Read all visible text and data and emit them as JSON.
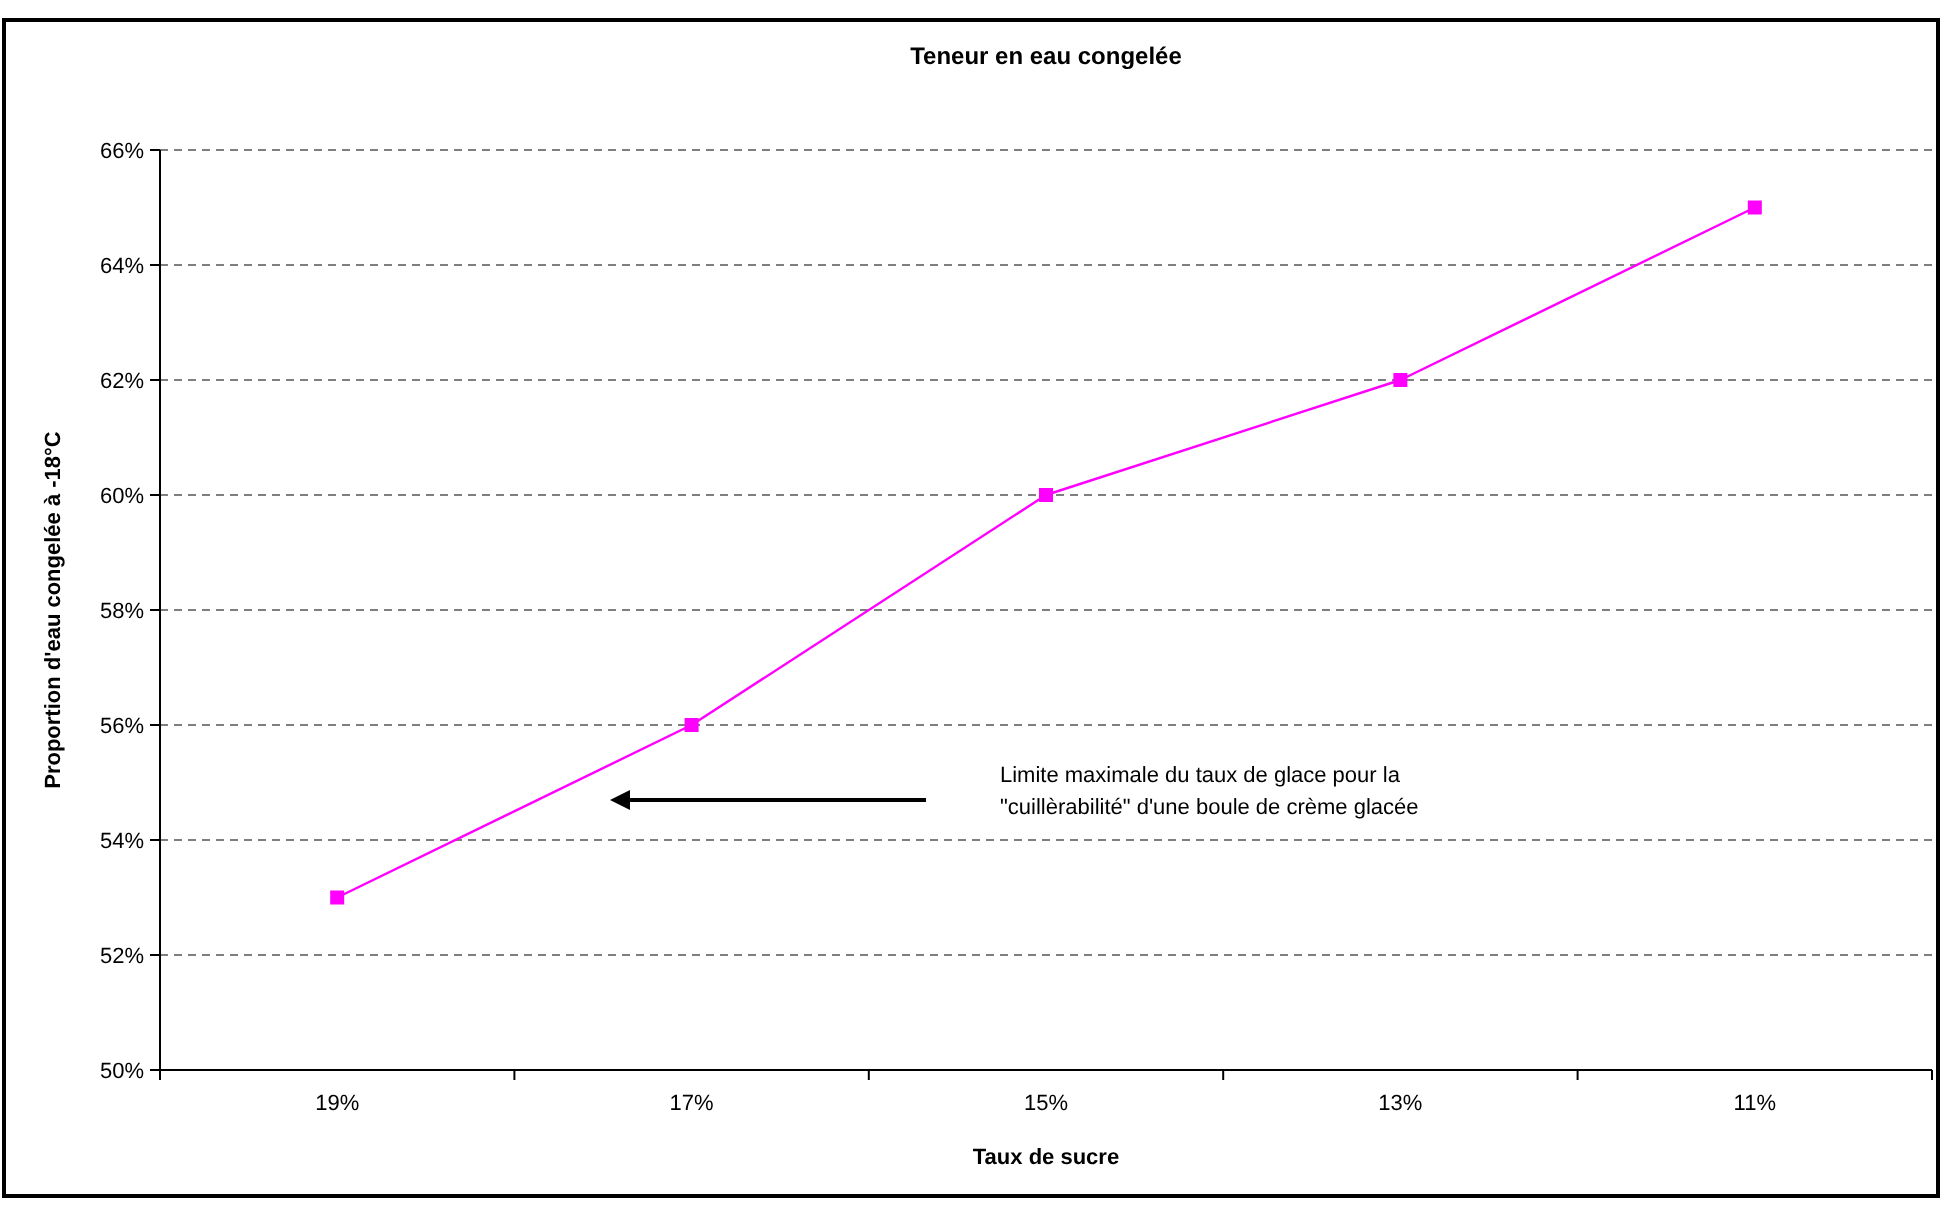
{
  "chart_data": {
    "type": "line",
    "title": "Teneur en eau congelée",
    "xlabel": "Taux de sucre",
    "ylabel": "Proportion d'eau congelée à -18°C",
    "categories": [
      "19%",
      "17%",
      "15%",
      "13%",
      "11%"
    ],
    "series": [
      {
        "color": "#ff00ff",
        "values": [
          53,
          56,
          60,
          62,
          65
        ]
      }
    ],
    "ylim": [
      50,
      66
    ],
    "yticks": [
      {
        "value": 50,
        "label": "50%"
      },
      {
        "value": 52,
        "label": "52%"
      },
      {
        "value": 54,
        "label": "54%"
      },
      {
        "value": 56,
        "label": "56%"
      },
      {
        "value": 58,
        "label": "58%"
      },
      {
        "value": 60,
        "label": "60%"
      },
      {
        "value": 62,
        "label": "62%"
      },
      {
        "value": 64,
        "label": "64%"
      },
      {
        "value": 66,
        "label": "66%"
      }
    ],
    "grid": "y",
    "marker": "square",
    "line_style": "solid",
    "annotations": [
      "Limite maximale du taux de glace pour la \"cuillèrabilité\" d'une boule de crème glacée"
    ]
  }
}
